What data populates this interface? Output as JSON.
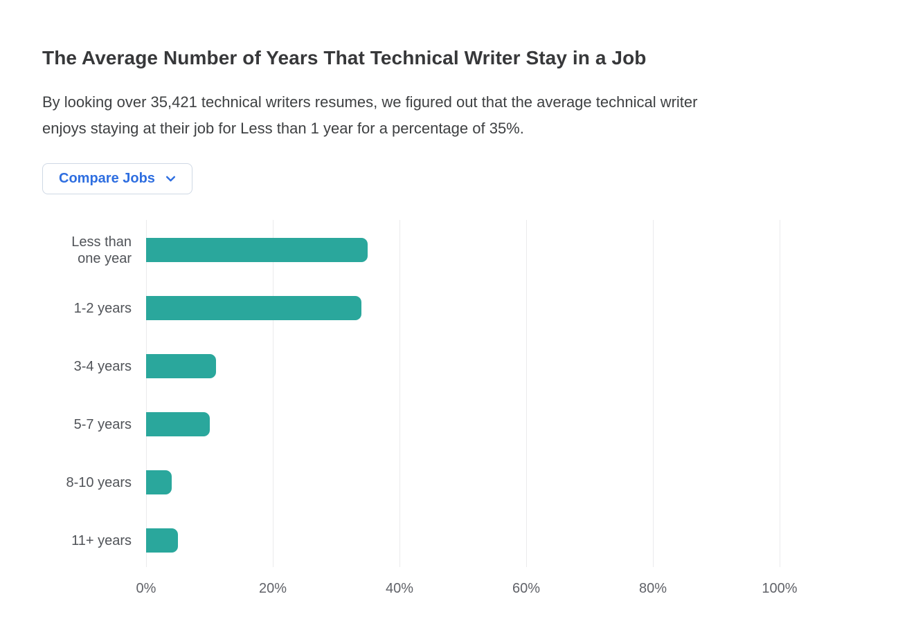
{
  "header": {
    "title": "The Average Number of Years That Technical Writer Stay in a Job",
    "description_lines": [
      "By looking over 35,421 technical writers resumes, we figured out that the average technical writer",
      "enjoys staying at their job for Less than 1 year for a percentage of 35%."
    ]
  },
  "compare_button": {
    "label": "Compare Jobs",
    "icon": "chevron-down-icon"
  },
  "colors": {
    "bar_teal": "#2aa79c",
    "accent_blue": "#2e6ee0",
    "button_border": "#cfd8e4",
    "gridline": "#eaeaec",
    "title_text": "#37383a",
    "body_text": "#3e4042",
    "label_text": "#505358",
    "tick_text": "#606268"
  },
  "chart_data": {
    "type": "bar",
    "orientation": "horizontal",
    "title": "The Average Number of Years That Technical Writer Stay in a Job",
    "categories": [
      "Less than one year",
      "1-2 years",
      "3-4 years",
      "5-7 years",
      "8-10 years",
      "11+ years"
    ],
    "values": [
      35,
      34,
      11,
      10,
      4,
      5
    ],
    "unit": "%",
    "xlabel": "",
    "ylabel": "",
    "xlim": [
      0,
      100
    ],
    "x_ticks": [
      "0%",
      "20%",
      "40%",
      "60%",
      "80%",
      "100%"
    ],
    "grid": true,
    "legend": false,
    "bar_color": "#2aa79c"
  }
}
